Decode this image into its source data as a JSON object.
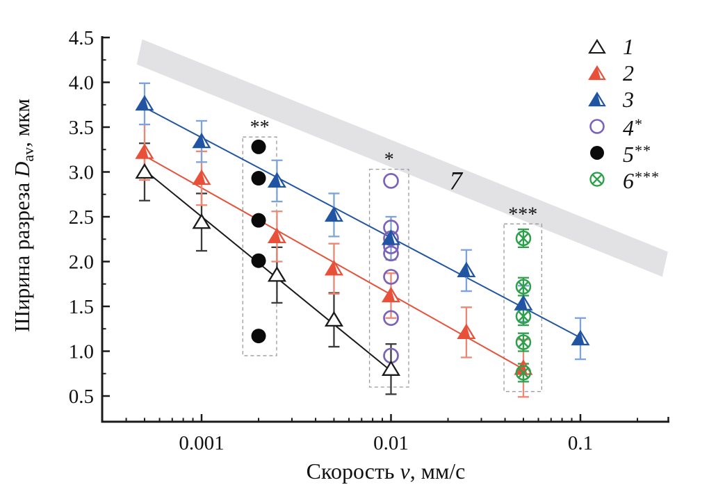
{
  "figure": {
    "y_title": {
      "prefix": "Ширина разреза ",
      "var": "D",
      "sub": "av",
      "suffix": ", мкм"
    },
    "x_title": {
      "prefix": "Скорость ",
      "var": "v",
      "suffix": ", мм/с"
    }
  },
  "legend": {
    "position": "top-right",
    "items": [
      {
        "label": "1",
        "sup": "",
        "marker": "triangle-open",
        "color": "#1a1a1a"
      },
      {
        "label": "2",
        "sup": "",
        "marker": "triangle-half",
        "color": "#e8503a"
      },
      {
        "label": "3",
        "sup": "",
        "marker": "triangle-half",
        "color": "#2155a4"
      },
      {
        "label": "4",
        "sup": "*",
        "marker": "circle-open",
        "color": "#7a63b8"
      },
      {
        "label": "5",
        "sup": "**",
        "marker": "circle-filled",
        "color": "#0a0a0a"
      },
      {
        "label": "6",
        "sup": "***",
        "marker": "circle-x",
        "color": "#2ea04c"
      }
    ]
  },
  "chart_data": {
    "type": "scatter",
    "title": "",
    "xlabel": "Скорость v, мм/с",
    "ylabel": "Ширина разреза Dav, мкм",
    "x_scale": "log",
    "xlim": [
      0.0003,
      0.3
    ],
    "ylim": [
      0.2,
      4.55
    ],
    "grid": false,
    "x_major_ticks": [
      0.001,
      0.01,
      0.1
    ],
    "x_major_tick_labels": [
      "0.001",
      "0.01",
      "0.1"
    ],
    "y_major_ticks": [
      0.5,
      1.0,
      1.5,
      2.0,
      2.5,
      3.0,
      3.5,
      4.0,
      4.5
    ],
    "y_major_tick_labels": [
      "0.5",
      "1.0",
      "1.5",
      "2.0",
      "2.5",
      "3.0",
      "3.5",
      "4.0",
      "4.5"
    ],
    "y_minor_ticks": [
      0.75,
      1.25,
      1.75,
      2.25,
      2.75,
      3.25,
      3.75,
      4.25
    ],
    "series": [
      {
        "name": "1",
        "marker": "triangle-open",
        "color": "#1a1a1a",
        "err_color": "#3a3a3a",
        "fit": {
          "x1": 0.0005,
          "y1": 3.02,
          "x2": 0.01,
          "y2": 0.78
        },
        "points": [
          {
            "x": 0.0005,
            "y": 3.0,
            "err": 0.32
          },
          {
            "x": 0.001,
            "y": 2.44,
            "err": 0.32
          },
          {
            "x": 0.0025,
            "y": 1.85,
            "err": 0.31
          },
          {
            "x": 0.005,
            "y": 1.35,
            "err": 0.3
          },
          {
            "x": 0.01,
            "y": 0.8,
            "err": 0.28
          }
        ]
      },
      {
        "name": "2",
        "marker": "triangle-half",
        "color": "#e8503a",
        "err_color": "#ef8672",
        "fit": {
          "x1": 0.0005,
          "y1": 3.18,
          "x2": 0.05,
          "y2": 0.8
        },
        "points": [
          {
            "x": 0.0005,
            "y": 3.22,
            "err": 0.31
          },
          {
            "x": 0.001,
            "y": 2.93,
            "err": 0.3
          },
          {
            "x": 0.0025,
            "y": 2.28,
            "err": 0.28
          },
          {
            "x": 0.005,
            "y": 1.92,
            "err": 0.28
          },
          {
            "x": 0.01,
            "y": 1.62,
            "err": 0.25
          },
          {
            "x": 0.025,
            "y": 1.21,
            "err": 0.28
          },
          {
            "x": 0.05,
            "y": 0.81,
            "err": 0.32
          }
        ]
      },
      {
        "name": "3",
        "marker": "triangle-half",
        "color": "#2155a4",
        "err_color": "#7da3dc",
        "fit": {
          "x1": 0.0005,
          "y1": 3.72,
          "x2": 0.1,
          "y2": 1.15
        },
        "points": [
          {
            "x": 0.0005,
            "y": 3.76,
            "err": 0.23
          },
          {
            "x": 0.001,
            "y": 3.34,
            "err": 0.23
          },
          {
            "x": 0.0025,
            "y": 2.9,
            "err": 0.23
          },
          {
            "x": 0.005,
            "y": 2.52,
            "err": 0.24
          },
          {
            "x": 0.01,
            "y": 2.26,
            "err": 0.24
          },
          {
            "x": 0.025,
            "y": 1.9,
            "err": 0.23
          },
          {
            "x": 0.05,
            "y": 1.53,
            "err": 0.2
          },
          {
            "x": 0.1,
            "y": 1.14,
            "err": 0.23
          }
        ]
      },
      {
        "name": "4*",
        "marker": "circle-open",
        "color": "#7a63b8",
        "points": [
          {
            "x": 0.01,
            "y": 2.9
          },
          {
            "x": 0.01,
            "y": 2.38
          },
          {
            "x": 0.01,
            "y": 2.26
          },
          {
            "x": 0.01,
            "y": 2.17
          },
          {
            "x": 0.01,
            "y": 2.09
          },
          {
            "x": 0.01,
            "y": 1.83
          },
          {
            "x": 0.01,
            "y": 1.37
          },
          {
            "x": 0.01,
            "y": 0.95
          }
        ]
      },
      {
        "name": "5**",
        "marker": "circle-filled",
        "color": "#0a0a0a",
        "points": [
          {
            "x": 0.002,
            "y": 3.28
          },
          {
            "x": 0.002,
            "y": 2.93
          },
          {
            "x": 0.002,
            "y": 2.46
          },
          {
            "x": 0.002,
            "y": 2.01
          },
          {
            "x": 0.002,
            "y": 1.17
          }
        ]
      },
      {
        "name": "6***",
        "marker": "circle-x",
        "color": "#2ea04c",
        "err_color": "#2ea04c",
        "points": [
          {
            "x": 0.05,
            "y": 2.26,
            "err": 0.1
          },
          {
            "x": 0.05,
            "y": 1.72,
            "err": 0.1
          },
          {
            "x": 0.05,
            "y": 1.39,
            "err": 0.1
          },
          {
            "x": 0.05,
            "y": 1.1,
            "err": 0.1
          },
          {
            "x": 0.05,
            "y": 0.76,
            "err": 0.1
          }
        ]
      }
    ],
    "annotations": {
      "band": {
        "label": "7",
        "x1": 0.00047,
        "y1": 4.34,
        "x2": 0.28,
        "y2": 1.97,
        "half_thickness_px": 18,
        "color": "#e2e2e4",
        "label_x": 0.022,
        "label_y": 2.9
      },
      "boxes": [
        {
          "label": "**",
          "x1": 0.00165,
          "x2": 0.00249,
          "y_bottom": 0.95,
          "y_top": 3.39
        },
        {
          "label": "*",
          "x1": 0.0077,
          "x2": 0.0124,
          "y_bottom": 0.6,
          "y_top": 3.03
        },
        {
          "label": "***",
          "x1": 0.0395,
          "x2": 0.0625,
          "y_bottom": 0.55,
          "y_top": 2.42
        }
      ]
    }
  }
}
